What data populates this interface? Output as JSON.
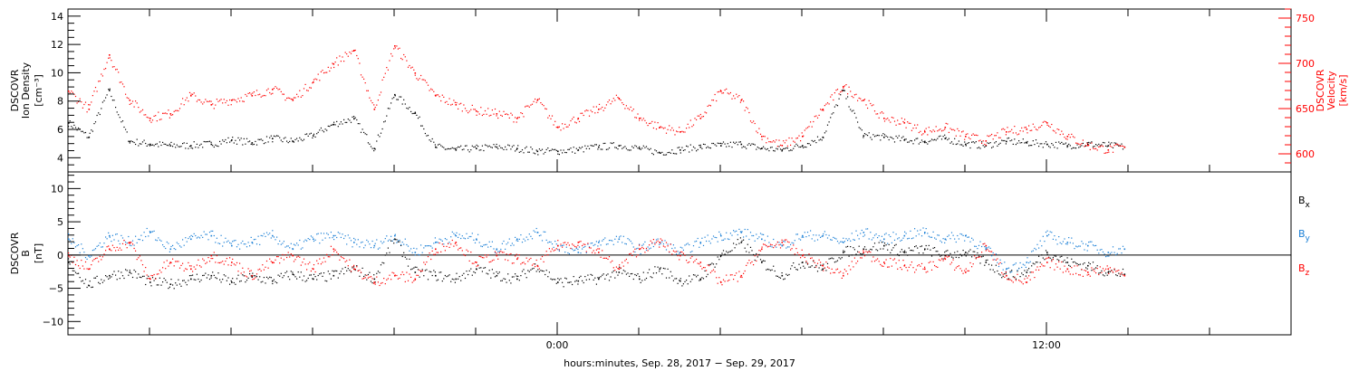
{
  "chart_data": [
    {
      "type": "scatter",
      "panel": "top",
      "y_label_lines": [
        "DSCOVR",
        "Ion Density",
        "[cm⁻³]"
      ],
      "y2_label_lines": [
        "DSCOVR",
        "Velocity",
        "[km/s]"
      ],
      "ylim": [
        3,
        14.5
      ],
      "yticks": [
        "4",
        "6",
        "8",
        "10",
        "12",
        "14"
      ],
      "ytick_values": [
        4,
        6,
        8,
        10,
        12,
        14
      ],
      "y2lim": [
        580,
        760
      ],
      "y2ticks": [
        "600",
        "650",
        "700",
        "750"
      ],
      "y2tick_values": [
        600,
        650,
        700,
        750
      ],
      "xlim_hours": [
        -12,
        18
      ],
      "data_end_hour": 13.9,
      "series": [
        {
          "color": "#000000",
          "axis": "left",
          "x": [
            -12,
            -11.5,
            -11,
            -10.5,
            -10,
            -9.5,
            -9,
            -8.5,
            -8,
            -7.5,
            -7,
            -6.5,
            -6,
            -5.5,
            -5,
            -4.5,
            -4,
            -3.5,
            -3,
            -2.5,
            -2,
            -1.5,
            -1,
            -0.5,
            0,
            0.5,
            1,
            1.5,
            2,
            2.5,
            3,
            3.5,
            4,
            4.5,
            5,
            5.5,
            6,
            6.5,
            7,
            7.5,
            8,
            8.5,
            9,
            9.5,
            10,
            10.5,
            11,
            11.5,
            12,
            12.5,
            13,
            13.5,
            13.9
          ],
          "y": [
            6.5,
            5.5,
            8.8,
            5.2,
            5.0,
            4.9,
            4.9,
            5.0,
            5.3,
            5.1,
            5.4,
            5.2,
            5.6,
            6.4,
            6.8,
            4.7,
            8.5,
            7.2,
            4.8,
            4.6,
            4.7,
            4.8,
            4.7,
            4.5,
            4.5,
            4.6,
            4.8,
            4.9,
            4.7,
            4.4,
            4.6,
            4.8,
            4.9,
            5.0,
            4.7,
            4.6,
            4.9,
            5.5,
            8.8,
            5.6,
            5.5,
            5.3,
            5.2,
            5.4,
            5.0,
            4.9,
            5.2,
            5.1,
            5.0,
            4.9,
            5.0,
            4.9,
            4.8
          ]
        },
        {
          "color": "#ff0000",
          "axis": "right",
          "x": [
            -12,
            -11.5,
            -11,
            -10.5,
            -10,
            -9.5,
            -9,
            -8.5,
            -8,
            -7.5,
            -7,
            -6.5,
            -6,
            -5.5,
            -5,
            -4.5,
            -4,
            -3.5,
            -3,
            -2.5,
            -2,
            -1.5,
            -1,
            -0.5,
            0,
            0.5,
            1,
            1.5,
            2,
            2.5,
            3,
            3.5,
            4,
            4.5,
            5,
            5.5,
            6,
            6.5,
            7,
            7.5,
            8,
            8.5,
            9,
            9.5,
            10,
            10.5,
            11,
            11.5,
            12,
            12.5,
            13,
            13.5,
            13.9
          ],
          "y": [
            670,
            650,
            710,
            660,
            640,
            645,
            665,
            655,
            660,
            665,
            672,
            660,
            680,
            700,
            715,
            650,
            720,
            690,
            665,
            655,
            648,
            645,
            640,
            660,
            630,
            640,
            650,
            662,
            640,
            630,
            625,
            640,
            670,
            660,
            620,
            610,
            620,
            650,
            675,
            660,
            640,
            635,
            625,
            630,
            620,
            615,
            625,
            628,
            635,
            620,
            610,
            605,
            608
          ]
        }
      ]
    },
    {
      "type": "scatter",
      "panel": "bottom",
      "y_label_lines": [
        "DSCOVR",
        "B",
        "[nT]"
      ],
      "ylim": [
        -12,
        12.5
      ],
      "yticks": [
        "−10",
        "−5",
        "0",
        "5",
        "10"
      ],
      "ytick_values": [
        -10,
        -5,
        0,
        5,
        10
      ],
      "zero_line": true,
      "xlim_hours": [
        -12,
        18
      ],
      "data_end_hour": 13.9,
      "legend": [
        {
          "label": "B",
          "sub": "x",
          "color": "#000000"
        },
        {
          "label": "B",
          "sub": "y",
          "color": "#1a7fd6"
        },
        {
          "label": "B",
          "sub": "z",
          "color": "#ff0000"
        }
      ],
      "series": [
        {
          "name": "Bx",
          "color": "#000000",
          "x": [
            -12,
            -11.5,
            -11,
            -10.5,
            -10,
            -9.5,
            -9,
            -8.5,
            -8,
            -7.5,
            -7,
            -6.5,
            -6,
            -5.5,
            -5,
            -4.5,
            -4,
            -3.5,
            -3,
            -2.5,
            -2,
            -1.5,
            -1,
            -0.5,
            0,
            0.5,
            1,
            1.5,
            2,
            2.5,
            3,
            3.5,
            4,
            4.5,
            5,
            5.5,
            6,
            6.5,
            7,
            7.5,
            8,
            8.5,
            9,
            9.5,
            10,
            10.5,
            11,
            11.5,
            12,
            12.5,
            13,
            13.5,
            13.9
          ],
          "y": [
            -1,
            -4.5,
            -3,
            -2.5,
            -4,
            -4.3,
            -3.5,
            -3,
            -4,
            -3.2,
            -3.8,
            -2.8,
            -3.5,
            -3,
            -2,
            -3.5,
            2.5,
            -2.5,
            -3,
            -3.5,
            -2,
            -3,
            -3.5,
            -1.5,
            -4,
            -3.8,
            -3.5,
            -2.5,
            -3.5,
            -2,
            -3.8,
            -3.5,
            0,
            2,
            -1,
            -3,
            -1,
            -2,
            0.5,
            1,
            1.5,
            0.5,
            1,
            0,
            0.5,
            -1,
            -3,
            -2.5,
            0.5,
            -1,
            -1.5,
            -2.5,
            -2.8
          ]
        },
        {
          "name": "By",
          "color": "#1a7fd6",
          "x": [
            -12,
            -11.5,
            -11,
            -10.5,
            -10,
            -9.5,
            -9,
            -8.5,
            -8,
            -7.5,
            -7,
            -6.5,
            -6,
            -5.5,
            -5,
            -4.5,
            -4,
            -3.5,
            -3,
            -2.5,
            -2,
            -1.5,
            -1,
            -0.5,
            0,
            0.5,
            1,
            1.5,
            2,
            2.5,
            3,
            3.5,
            4,
            4.5,
            5,
            5.5,
            6,
            6.5,
            7,
            7.5,
            8,
            8.5,
            9,
            9.5,
            10,
            10.5,
            11,
            11.5,
            12,
            12.5,
            13,
            13.5,
            13.9
          ],
          "y": [
            2.5,
            0,
            3,
            2,
            3.5,
            1,
            2.5,
            3,
            1.5,
            2,
            3,
            1,
            2.5,
            3,
            2,
            1.5,
            3,
            0.5,
            2,
            3,
            2.5,
            1,
            2.5,
            3.5,
            1.5,
            0.5,
            2,
            2.5,
            1,
            2,
            0.5,
            2,
            3,
            3.5,
            2.5,
            1.5,
            3,
            3,
            2,
            3.5,
            2.5,
            3,
            3.5,
            2.5,
            3,
            1,
            -2,
            -1,
            3,
            2,
            1.5,
            0.5,
            1
          ]
        },
        {
          "name": "Bz",
          "color": "#ff0000",
          "x": [
            -12,
            -11.5,
            -11,
            -10.5,
            -10,
            -9.5,
            -9,
            -8.5,
            -8,
            -7.5,
            -7,
            -6.5,
            -6,
            -5.5,
            -5,
            -4.5,
            -4,
            -3.5,
            -3,
            -2.5,
            -2,
            -1.5,
            -1,
            -0.5,
            0,
            0.5,
            1,
            1.5,
            2,
            2.5,
            3,
            3.5,
            4,
            4.5,
            5,
            5.5,
            6,
            6.5,
            7,
            7.5,
            8,
            8.5,
            9,
            9.5,
            10,
            10.5,
            11,
            11.5,
            12,
            12.5,
            13,
            13.5,
            13.9
          ],
          "y": [
            0,
            -2,
            1,
            2,
            -3.5,
            -1,
            -2,
            0,
            -1,
            -3,
            -1,
            0,
            -2,
            1,
            -2,
            -4,
            -3,
            -3.5,
            1,
            2,
            -1,
            0,
            -0.5,
            -1.5,
            1.5,
            2,
            0.5,
            -2,
            1,
            2,
            0,
            -1,
            -4,
            -3,
            1,
            2,
            0,
            -1.5,
            -3,
            0.5,
            -1,
            -1.5,
            -2,
            -0.5,
            -2.5,
            1.5,
            -3,
            -4,
            -1,
            -2,
            -2.5,
            -2,
            -3
          ]
        }
      ]
    }
  ],
  "x_axis": {
    "tick_labels": [
      "0:00",
      "12:00"
    ],
    "tick_hours": [
      0,
      12
    ],
    "label": "hours:minutes, Sep. 28, 2017 − Sep. 29, 2017"
  }
}
